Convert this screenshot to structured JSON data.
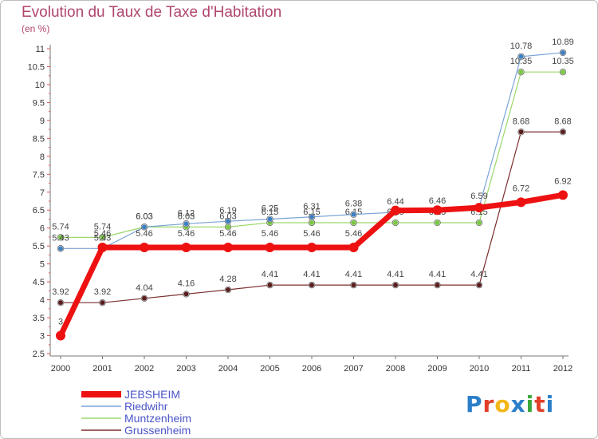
{
  "title": "Evolution du Taux de Taxe d'Habitation",
  "unit": "(en %)",
  "logo": "Proxiti",
  "colors": {
    "JEBSHEIM": "#ee1111",
    "Riedwihr": "#7aa4d6",
    "Muntzenheim": "#9ad86b",
    "Grussenheim": "#7b2d2d",
    "title": "#b0466e",
    "legend_text": "#4a55c8"
  },
  "chart_data": {
    "type": "line",
    "title": "Evolution du Taux de Taxe d'Habitation",
    "ylabel": "(en %)",
    "xlabel": "",
    "ylim": [
      2.5,
      11
    ],
    "grid": false,
    "legend_position": "bottom-left",
    "x": [
      "2000",
      "2001",
      "2002",
      "2003",
      "2004",
      "2005",
      "2006",
      "2007",
      "2008",
      "2009",
      "2010",
      "2011",
      "2012"
    ],
    "yticks": [
      "2.5",
      "3",
      "3.5",
      "4",
      "4.5",
      "5",
      "5.5",
      "6",
      "6.5",
      "7",
      "7.5",
      "8",
      "8.5",
      "9",
      "9.5",
      "10",
      "10.5",
      "11"
    ],
    "series": [
      {
        "name": "JEBSHEIM",
        "values": [
          3,
          5.46,
          5.46,
          5.46,
          5.46,
          5.46,
          5.46,
          5.46,
          6.49,
          6.5,
          6.57,
          6.72,
          6.92
        ],
        "labels": [
          "3",
          "5.46",
          "5.46",
          "5.46",
          "5.46",
          "5.46",
          "5.46",
          "5.46",
          "",
          "",
          "",
          "6.72",
          "6.92"
        ]
      },
      {
        "name": "Riedwihr",
        "values": [
          5.43,
          5.43,
          6.03,
          6.12,
          6.19,
          6.25,
          6.31,
          6.38,
          6.44,
          6.46,
          6.59,
          10.78,
          10.89
        ],
        "labels": [
          "5.43",
          "5.43",
          "6.03",
          "6.12",
          "6.19",
          "6.25",
          "6.31",
          "6.38",
          "6.44",
          "6.46",
          "6.59",
          "10.78",
          "10.89"
        ]
      },
      {
        "name": "Muntzenheim",
        "values": [
          5.74,
          5.74,
          6.03,
          6.03,
          6.03,
          6.15,
          6.15,
          6.15,
          6.15,
          6.15,
          6.15,
          10.35,
          10.35
        ],
        "labels": [
          "5.74",
          "5.74",
          "6.03",
          "6.03",
          "6.03",
          "6.15",
          "6.15",
          "6.15",
          "6.15",
          "6.15",
          "6.15",
          "10.35",
          "10.35"
        ]
      },
      {
        "name": "Grussenheim",
        "values": [
          3.92,
          3.92,
          4.04,
          4.16,
          4.28,
          4.41,
          4.41,
          4.41,
          4.41,
          4.41,
          4.41,
          8.68,
          8.68
        ],
        "labels": [
          "3.92",
          "3.92",
          "4.04",
          "4.16",
          "4.28",
          "4.41",
          "4.41",
          "4.41",
          "4.41",
          "4.41",
          "4.41",
          "8.68",
          "8.68"
        ]
      }
    ]
  }
}
